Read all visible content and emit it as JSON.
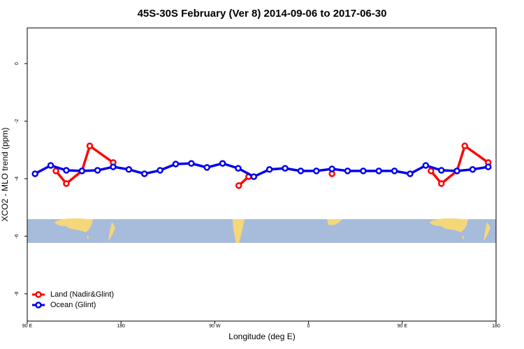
{
  "chart_data": {
    "type": "line",
    "title": "45S-30S February (Ver 8)   2014-09-06 to 2017-06-30",
    "x_label": "Longitude (deg E)",
    "y_label": "XCO2 - MLO trend (ppm)",
    "xlim": [
      90,
      540
    ],
    "xticks": [
      {
        "value": 90,
        "label": "90 E"
      },
      180,
      {
        "value": 270,
        "label": "90 W"
      },
      {
        "value": 360,
        "label": "0"
      },
      {
        "value": 450,
        "label": "90 E"
      },
      {
        "value": 540,
        "label": "180"
      }
    ],
    "ylim": [
      -8.95,
      1.24
    ],
    "yticks": [
      0,
      -2,
      -4,
      -6,
      -8
    ],
    "legend": "bottom-left",
    "series": [
      {
        "name": "Land (Nadir&Glint)",
        "color": "#ff0000",
        "x": [
          117.5,
          127.5,
          142.5,
          150,
          172.5,
          null,
          293,
          302.5,
          null,
          382.5,
          null,
          477.5,
          487.5,
          502.5,
          510,
          532.5
        ],
        "values": [
          -3.73,
          -4.17,
          -3.73,
          -2.86,
          -3.44,
          null,
          -4.24,
          -3.93,
          null,
          -3.83,
          null,
          -3.73,
          -4.17,
          -3.73,
          -2.86,
          -3.44
        ]
      },
      {
        "name": "Ocean (Glint)",
        "color": "#0000ee",
        "x": [
          97.5,
          112.5,
          127.5,
          142.5,
          157.5,
          172.5,
          187.5,
          202.5,
          217.5,
          232.5,
          247.5,
          262.5,
          277.5,
          292.5,
          307.5,
          322.5,
          337.5,
          352.5,
          367.5,
          382.5,
          397.5,
          412.5,
          427.5,
          442.5,
          457.5,
          472.5,
          487.5,
          502.5,
          517.5,
          532.5
        ],
        "values": [
          -3.83,
          -3.54,
          -3.71,
          -3.73,
          -3.71,
          -3.59,
          -3.68,
          -3.83,
          -3.71,
          -3.49,
          -3.47,
          -3.61,
          -3.47,
          -3.64,
          -3.93,
          -3.68,
          -3.64,
          -3.73,
          -3.73,
          -3.66,
          -3.73,
          -3.73,
          -3.73,
          -3.73,
          -3.83,
          -3.54,
          -3.71,
          -3.73,
          -3.68,
          -3.59
        ]
      }
    ]
  }
}
